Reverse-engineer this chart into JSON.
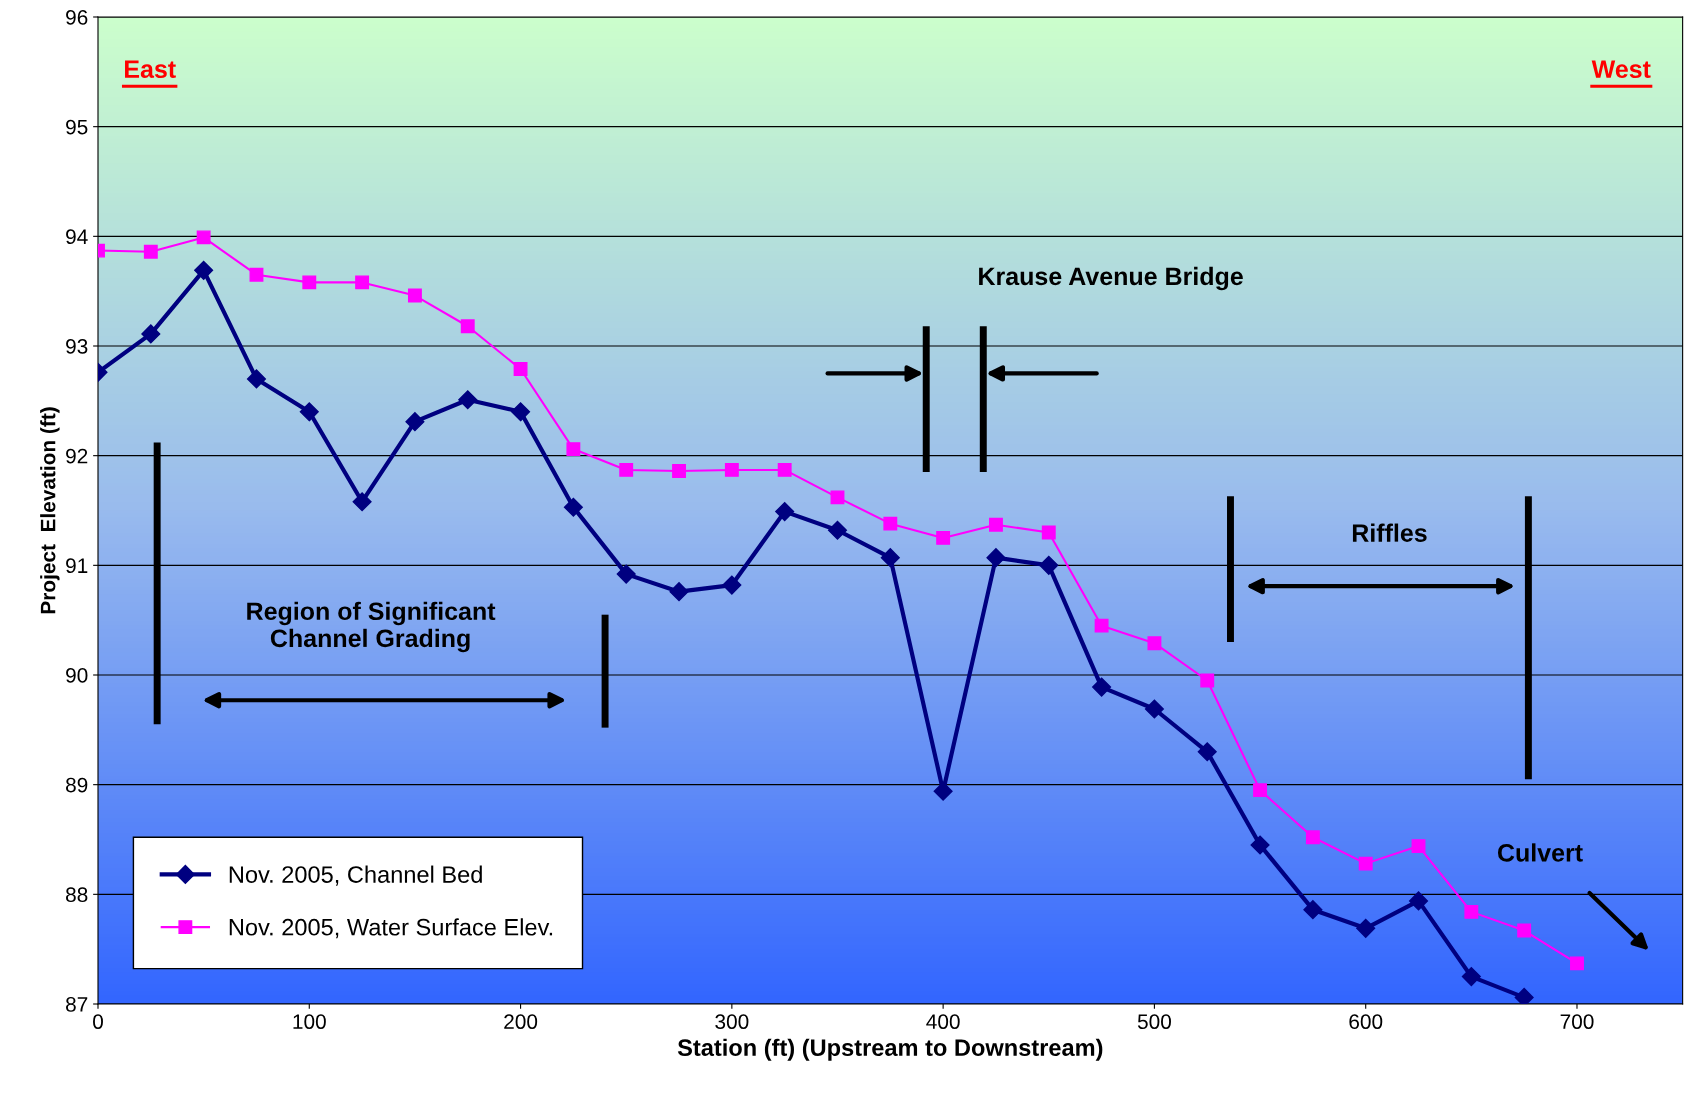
{
  "chart_data": {
    "type": "line",
    "xlabel": "Station (ft) (Upstream to Downstream)",
    "ylabel": "Project  Elevation (ft)",
    "x": [
      0,
      25,
      50,
      75,
      100,
      125,
      150,
      175,
      200,
      225,
      250,
      275,
      300,
      325,
      350,
      375,
      400,
      425,
      450,
      475,
      500,
      525,
      550,
      575,
      600,
      625,
      650,
      675,
      700
    ],
    "series": [
      {
        "name": "Nov. 2005, Channel Bed",
        "color": "#000080",
        "marker": "diamond",
        "values": [
          92.76,
          93.11,
          93.69,
          92.7,
          92.4,
          91.58,
          92.31,
          92.51,
          92.4,
          91.53,
          90.92,
          90.76,
          90.82,
          91.49,
          91.32,
          91.07,
          88.94,
          91.07,
          91.0,
          89.89,
          89.69,
          89.3,
          88.45,
          87.86,
          87.69,
          87.94,
          87.25,
          87.06,
          null
        ]
      },
      {
        "name": "Nov. 2005, Water Surface Elev.",
        "color": "#ff00ff",
        "marker": "square",
        "values": [
          93.87,
          93.86,
          93.99,
          93.65,
          93.58,
          93.58,
          93.46,
          93.18,
          92.79,
          92.06,
          91.87,
          91.86,
          91.87,
          91.87,
          91.62,
          91.38,
          91.25,
          91.37,
          91.3,
          90.45,
          90.29,
          89.95,
          88.95,
          88.52,
          88.28,
          88.44,
          87.84,
          87.67,
          87.37
        ]
      }
    ],
    "xlim": [
      0,
      750
    ],
    "xticks": [
      0,
      100,
      200,
      300,
      400,
      500,
      600,
      700
    ],
    "ylim": [
      87,
      96
    ],
    "yticks": [
      87,
      88,
      89,
      90,
      91,
      92,
      93,
      94,
      95,
      96
    ],
    "grid": "y",
    "legend": "bottom left",
    "line_style": "solid",
    "annotations": [
      "East",
      "West",
      "Krause Avenue Bridge",
      "Riffles",
      "Region of Significant\nChannel Grading",
      "Culvert"
    ]
  }
}
